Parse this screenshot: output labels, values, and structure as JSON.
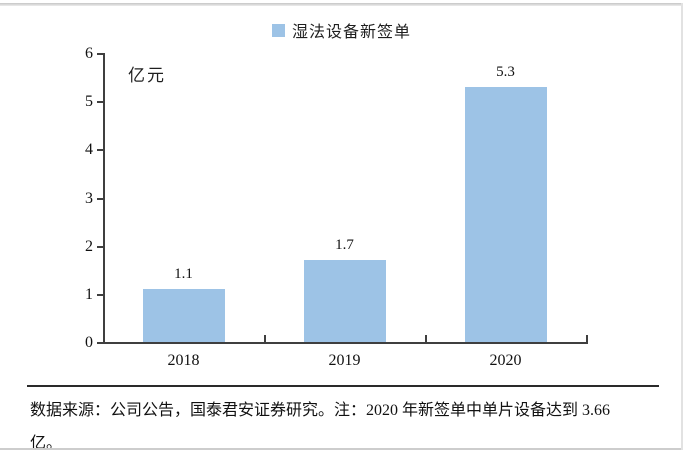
{
  "chart_data": {
    "type": "bar",
    "title": "",
    "legend": [
      "湿法设备新签单"
    ],
    "legend_position": "top-center",
    "unit_label": "亿元",
    "categories": [
      "2018",
      "2019",
      "2020"
    ],
    "values": [
      1.1,
      1.7,
      5.3
    ],
    "data_labels": [
      "1.1",
      "1.7",
      "5.3"
    ],
    "ylim": [
      0,
      6
    ],
    "yticks": [
      0,
      1,
      2,
      3,
      4,
      5,
      6
    ],
    "grid": false,
    "colors": {
      "bar_fill": "#9DC3E6",
      "axis_line": "#3f3f3f",
      "text": "#111111"
    }
  },
  "footer": {
    "source_note_lines": [
      "数据来源：公司公告，国泰君安证券研究。注：2020 年新签单中单片设备达到 3.66",
      "亿。"
    ]
  }
}
